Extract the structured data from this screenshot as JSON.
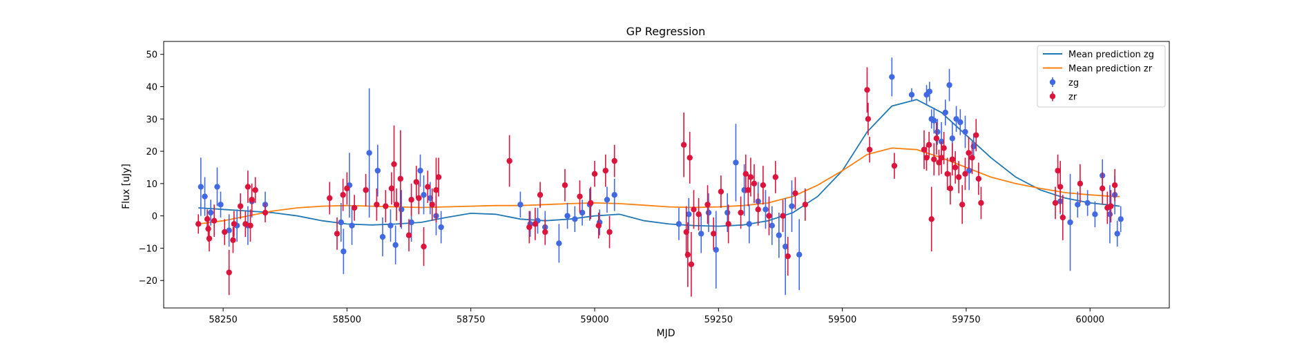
{
  "chart_data": {
    "type": "scatter",
    "title": "GP Regression",
    "xlabel": "MJD",
    "ylabel": "Flux [uJy]",
    "xlim": [
      58130,
      60160
    ],
    "ylim": [
      -28.5,
      54
    ],
    "xticks": [
      58250,
      58500,
      58750,
      59000,
      59250,
      59500,
      59750,
      60000
    ],
    "yticks": [
      -20,
      -10,
      0,
      10,
      20,
      30,
      40,
      50
    ],
    "grid": false,
    "legend_position": "top-right",
    "legend": [
      {
        "label": "Mean prediction zg",
        "kind": "line",
        "color": "#1f77b4"
      },
      {
        "label": "Mean prediction zr",
        "kind": "line",
        "color": "#ff7f0e"
      },
      {
        "label": "zg",
        "kind": "errorbar",
        "color": "#4169e1"
      },
      {
        "label": "zr",
        "kind": "errorbar",
        "color": "#dc143c"
      }
    ],
    "series": [
      {
        "name": "Mean prediction zg",
        "kind": "line",
        "color": "#1f77b4",
        "x": [
          58200,
          58250,
          58300,
          58350,
          58400,
          58450,
          58500,
          58550,
          58600,
          58650,
          58700,
          58750,
          58800,
          58850,
          58900,
          58950,
          59000,
          59050,
          59100,
          59150,
          59200,
          59250,
          59300,
          59350,
          59400,
          59450,
          59500,
          59550,
          59600,
          59650,
          59700,
          59750,
          59800,
          59850,
          59900,
          59950,
          60000,
          60050,
          60060
        ],
        "y": [
          2.5,
          2.0,
          1.5,
          1.0,
          0.0,
          -1.5,
          -2.5,
          -2.8,
          -2.5,
          -2.0,
          -0.5,
          0.8,
          0.5,
          -1.0,
          -1.5,
          -1.0,
          0.0,
          0.5,
          -1.5,
          -2.5,
          -3.0,
          -3.2,
          -2.8,
          -1.5,
          1.0,
          6.0,
          14.0,
          26.0,
          34.0,
          36.0,
          32.0,
          25.0,
          18.0,
          12.0,
          8.0,
          5.5,
          4.0,
          3.2,
          3.0
        ]
      },
      {
        "name": "Mean prediction zr",
        "kind": "line",
        "color": "#ff7f0e",
        "x": [
          58200,
          58250,
          58300,
          58350,
          58400,
          58450,
          58500,
          58550,
          58600,
          58650,
          58700,
          58750,
          58800,
          58850,
          58900,
          58950,
          59000,
          59050,
          59100,
          59150,
          59200,
          59250,
          59300,
          59350,
          59400,
          59450,
          59500,
          59550,
          59600,
          59650,
          59700,
          59750,
          59800,
          59850,
          59900,
          59950,
          60000,
          60050,
          60060
        ],
        "y": [
          -2.5,
          -1.5,
          0.0,
          1.5,
          2.5,
          3.0,
          3.2,
          3.0,
          2.8,
          2.6,
          2.8,
          3.0,
          3.2,
          3.2,
          3.5,
          3.8,
          4.0,
          3.8,
          3.3,
          2.8,
          2.6,
          2.8,
          3.2,
          4.0,
          6.0,
          9.5,
          14.0,
          19.0,
          21.0,
          20.5,
          18.0,
          15.0,
          12.0,
          10.0,
          8.5,
          7.2,
          6.5,
          6.0,
          6.0
        ]
      },
      {
        "name": "zg",
        "kind": "errorbar",
        "color": "#4169e1",
        "x": [
          58205,
          58213,
          58225,
          58238,
          58245,
          58262,
          58278,
          58300,
          58308,
          58335,
          58488,
          58493,
          58505,
          58510,
          58545,
          58562,
          58572,
          58588,
          58598,
          58610,
          58630,
          58648,
          58655,
          58668,
          58680,
          58690,
          58850,
          58870,
          58885,
          58900,
          58928,
          58945,
          58960,
          58975,
          58990,
          59010,
          59025,
          59040,
          59170,
          59190,
          59215,
          59230,
          59245,
          59268,
          59285,
          59302,
          59312,
          59330,
          59345,
          59358,
          59372,
          59385,
          59398,
          59413,
          59600,
          59640,
          59670,
          59676,
          59680,
          59685,
          59692,
          59700,
          59708,
          59716,
          59722,
          59730,
          59738,
          59748,
          59756,
          59765,
          59940,
          59960,
          59975,
          59995,
          60010,
          60025,
          60040,
          60050,
          60055,
          60062
        ],
        "y": [
          9.0,
          6.0,
          1.0,
          9.0,
          3.5,
          -4.5,
          -3.0,
          -3.0,
          4.5,
          3.5,
          -2.0,
          -11.0,
          9.5,
          -3.0,
          19.5,
          14.0,
          -6.5,
          -3.0,
          -9.0,
          2.0,
          -2.0,
          14.0,
          6.5,
          5.5,
          0.0,
          -3.5,
          3.5,
          -2.5,
          -1.5,
          -3.5,
          -8.5,
          0.0,
          -1.0,
          1.0,
          3.5,
          -2.0,
          5.0,
          6.5,
          -2.5,
          0.5,
          -5.5,
          1.0,
          -10.5,
          1.0,
          16.5,
          8.0,
          -2.5,
          4.5,
          2.0,
          -3.0,
          -6.0,
          -9.5,
          3.0,
          -12.0,
          43.0,
          37.5,
          37.5,
          38.5,
          30.0,
          29.5,
          26.0,
          23.0,
          32.0,
          40.5,
          24.0,
          30.0,
          29.0,
          26.0,
          14.0,
          21.5,
          4.5,
          -2.0,
          3.5,
          4.0,
          0.5,
          12.5,
          0.5,
          6.5,
          -5.5,
          -1.0
        ],
        "yerr": [
          9,
          6,
          4,
          6,
          4,
          5,
          5,
          6,
          5,
          4,
          6,
          7,
          10,
          6,
          20,
          8,
          6,
          5,
          6,
          6,
          6,
          5,
          6,
          5,
          6,
          5,
          4,
          4,
          4,
          5,
          6,
          4,
          4,
          4,
          5,
          4,
          4,
          5,
          5,
          5,
          6,
          6,
          12,
          6,
          12,
          8,
          6,
          6,
          6,
          6,
          7,
          15,
          8,
          11,
          6,
          2,
          3,
          3,
          3,
          4,
          4,
          6,
          4,
          5,
          5,
          4,
          4,
          5,
          6,
          4,
          4,
          15,
          4,
          4,
          4,
          5,
          9,
          6,
          4,
          4
        ]
      },
      {
        "name": "zr",
        "kind": "errorbar",
        "color": "#dc143c",
        "x": [
          58200,
          58218,
          58220,
          58222,
          58232,
          58253,
          58262,
          58270,
          58272,
          58285,
          58295,
          58300,
          58305,
          58308,
          58315,
          58335,
          58465,
          58480,
          58492,
          58500,
          58515,
          58538,
          58560,
          58578,
          58590,
          58595,
          58600,
          58608,
          58625,
          58630,
          58640,
          58645,
          58655,
          58663,
          58672,
          58680,
          58685,
          58828,
          58868,
          58880,
          58890,
          58900,
          58940,
          58970,
          58992,
          59000,
          59008,
          59022,
          59030,
          59040,
          59180,
          59185,
          59188,
          59192,
          59195,
          59200,
          59210,
          59228,
          59240,
          59255,
          59270,
          59295,
          59305,
          59310,
          59315,
          59322,
          59330,
          59340,
          59352,
          59365,
          59380,
          59390,
          59405,
          59425,
          59550,
          59552,
          59555,
          59605,
          59665,
          59670,
          59675,
          59680,
          59685,
          59690,
          59695,
          59700,
          59705,
          59712,
          59718,
          59722,
          59728,
          59735,
          59742,
          59748,
          59755,
          59762,
          59770,
          59775,
          59780,
          59930,
          59935,
          59940,
          59945,
          59980,
          60025,
          60035,
          60042,
          60050
        ],
        "y": [
          -2.5,
          -1.0,
          -4.0,
          -7.0,
          -1.5,
          -5.0,
          -17.5,
          -7.5,
          -2.5,
          3.0,
          -2.5,
          9.0,
          -3.0,
          5.0,
          8.0,
          1.0,
          5.5,
          -5.5,
          6.5,
          8.5,
          2.5,
          8.0,
          3.5,
          3.0,
          8.5,
          16.0,
          3.5,
          11.5,
          -6.0,
          5.0,
          10.5,
          5.5,
          -9.5,
          9.0,
          3.5,
          8.0,
          12.0,
          17.0,
          -3.5,
          -2.5,
          6.5,
          -5.0,
          9.5,
          6.0,
          4.0,
          13.0,
          -3.0,
          14.0,
          -5.0,
          17.0,
          22.0,
          -5.0,
          -12.0,
          18.0,
          -15.0,
          2.0,
          0.5,
          3.5,
          -5.5,
          7.5,
          -2.5,
          1.0,
          13.0,
          8.0,
          12.0,
          10.0,
          2.0,
          9.5,
          0.0,
          12.0,
          0.0,
          -12.5,
          7.0,
          3.5,
          39.0,
          30.0,
          20.5,
          15.5,
          20.5,
          18.0,
          22.0,
          -1.0,
          17.5,
          24.0,
          16.5,
          18.0,
          21.0,
          13.0,
          8.5,
          17.5,
          15.0,
          12.0,
          3.5,
          13.0,
          19.5,
          18.0,
          25.0,
          11.5,
          4.0,
          4.0,
          14.0,
          9.0,
          -0.5,
          10.0,
          8.5,
          2.5,
          3.0,
          9.5
        ],
        "yerr": [
          3,
          3,
          4,
          4,
          5,
          4,
          7,
          4,
          4,
          4,
          4,
          5,
          5,
          5,
          4,
          3,
          5,
          5,
          5,
          5,
          4,
          5,
          5,
          5,
          5,
          12,
          5,
          15,
          5,
          5,
          5,
          5,
          6,
          5,
          5,
          10,
          6,
          8,
          5,
          5,
          4,
          4,
          5,
          5,
          5,
          4,
          4,
          5,
          5,
          5,
          10,
          8,
          10,
          8,
          10,
          6,
          5,
          6,
          5,
          5,
          6,
          5,
          6,
          5,
          6,
          6,
          5,
          6,
          6,
          5,
          5,
          6,
          5,
          5,
          7,
          5,
          4,
          4,
          6,
          4,
          4,
          10,
          5,
          5,
          4,
          5,
          5,
          5,
          5,
          5,
          5,
          5,
          6,
          5,
          5,
          5,
          5,
          5,
          5,
          5,
          5,
          8,
          7,
          6,
          5,
          5,
          5,
          5
        ]
      }
    ]
  }
}
